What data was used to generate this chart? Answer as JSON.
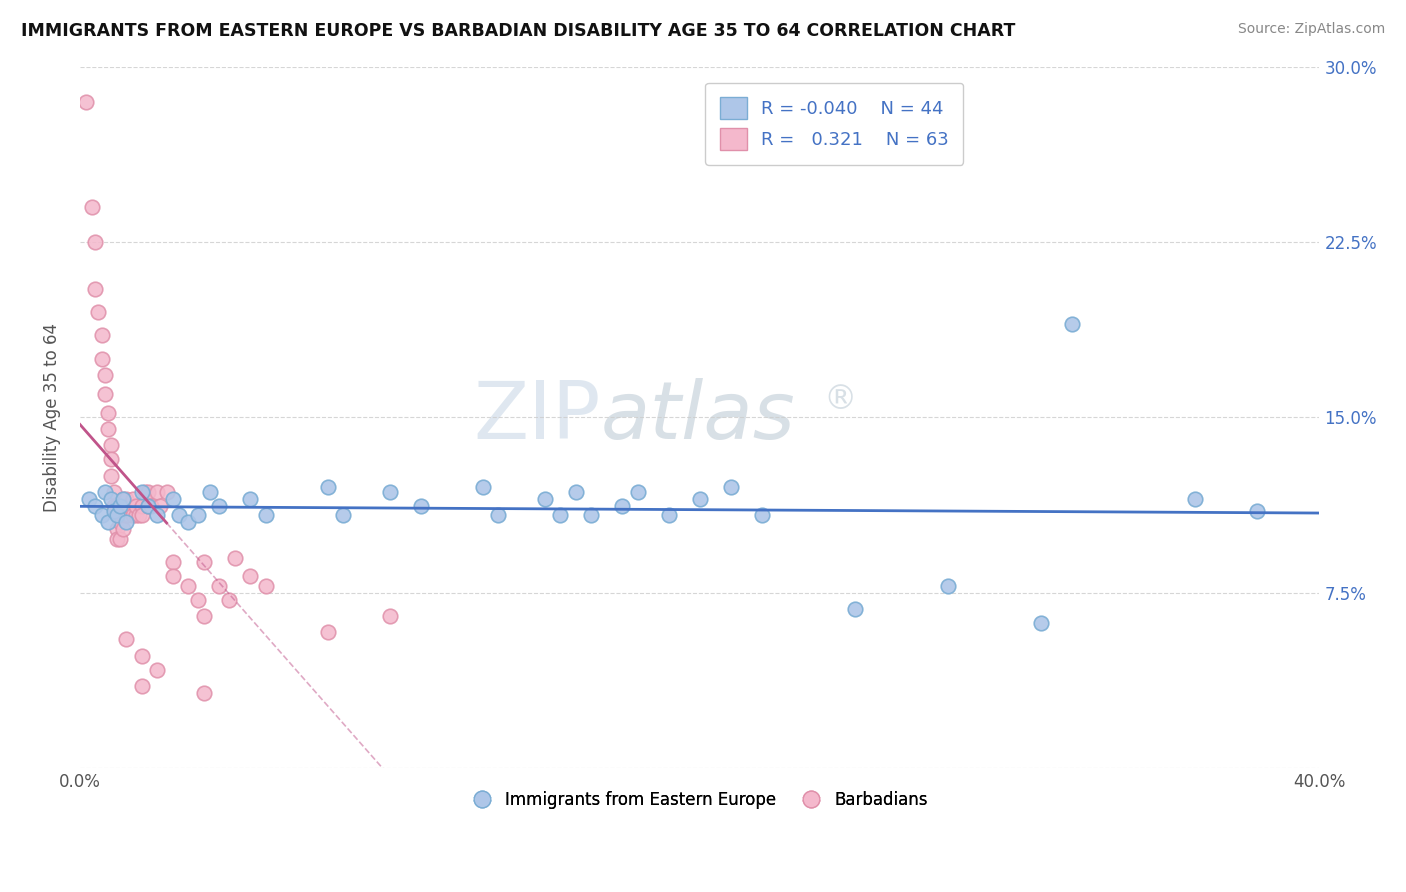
{
  "title": "IMMIGRANTS FROM EASTERN EUROPE VS BARBADIAN DISABILITY AGE 35 TO 64 CORRELATION CHART",
  "source": "Source: ZipAtlas.com",
  "ylabel": "Disability Age 35 to 64",
  "xlim": [
    0.0,
    0.4
  ],
  "ylim": [
    0.0,
    0.3
  ],
  "xtick_vals": [
    0.0,
    0.1,
    0.2,
    0.3,
    0.4
  ],
  "xtick_labels": [
    "0.0%",
    "",
    "",
    "",
    "40.0%"
  ],
  "ytick_vals": [
    0.0,
    0.075,
    0.15,
    0.225,
    0.3
  ],
  "ytick_labels": [
    "",
    "7.5%",
    "15.0%",
    "22.5%",
    "30.0%"
  ],
  "legend_r_blue": "-0.040",
  "legend_n_blue": "44",
  "legend_r_pink": "0.321",
  "legend_n_pink": "63",
  "blue_scatter": [
    [
      0.003,
      0.115
    ],
    [
      0.005,
      0.112
    ],
    [
      0.007,
      0.108
    ],
    [
      0.008,
      0.118
    ],
    [
      0.009,
      0.105
    ],
    [
      0.01,
      0.115
    ],
    [
      0.011,
      0.11
    ],
    [
      0.012,
      0.108
    ],
    [
      0.013,
      0.112
    ],
    [
      0.014,
      0.115
    ],
    [
      0.015,
      0.105
    ],
    [
      0.02,
      0.118
    ],
    [
      0.022,
      0.112
    ],
    [
      0.025,
      0.108
    ],
    [
      0.03,
      0.115
    ],
    [
      0.032,
      0.108
    ],
    [
      0.035,
      0.105
    ],
    [
      0.038,
      0.108
    ],
    [
      0.042,
      0.118
    ],
    [
      0.045,
      0.112
    ],
    [
      0.055,
      0.115
    ],
    [
      0.06,
      0.108
    ],
    [
      0.08,
      0.12
    ],
    [
      0.085,
      0.108
    ],
    [
      0.1,
      0.118
    ],
    [
      0.11,
      0.112
    ],
    [
      0.13,
      0.12
    ],
    [
      0.135,
      0.108
    ],
    [
      0.15,
      0.115
    ],
    [
      0.155,
      0.108
    ],
    [
      0.16,
      0.118
    ],
    [
      0.165,
      0.108
    ],
    [
      0.175,
      0.112
    ],
    [
      0.18,
      0.118
    ],
    [
      0.19,
      0.108
    ],
    [
      0.2,
      0.115
    ],
    [
      0.21,
      0.12
    ],
    [
      0.22,
      0.108
    ],
    [
      0.25,
      0.068
    ],
    [
      0.28,
      0.078
    ],
    [
      0.31,
      0.062
    ],
    [
      0.32,
      0.19
    ],
    [
      0.36,
      0.115
    ],
    [
      0.38,
      0.11
    ]
  ],
  "pink_scatter": [
    [
      0.002,
      0.285
    ],
    [
      0.004,
      0.24
    ],
    [
      0.005,
      0.225
    ],
    [
      0.005,
      0.205
    ],
    [
      0.006,
      0.195
    ],
    [
      0.007,
      0.185
    ],
    [
      0.007,
      0.175
    ],
    [
      0.008,
      0.168
    ],
    [
      0.008,
      0.16
    ],
    [
      0.009,
      0.152
    ],
    [
      0.009,
      0.145
    ],
    [
      0.01,
      0.138
    ],
    [
      0.01,
      0.132
    ],
    [
      0.01,
      0.125
    ],
    [
      0.011,
      0.118
    ],
    [
      0.011,
      0.112
    ],
    [
      0.012,
      0.108
    ],
    [
      0.012,
      0.102
    ],
    [
      0.012,
      0.098
    ],
    [
      0.012,
      0.112
    ],
    [
      0.013,
      0.108
    ],
    [
      0.013,
      0.105
    ],
    [
      0.013,
      0.098
    ],
    [
      0.014,
      0.115
    ],
    [
      0.014,
      0.108
    ],
    [
      0.014,
      0.102
    ],
    [
      0.015,
      0.112
    ],
    [
      0.015,
      0.108
    ],
    [
      0.015,
      0.115
    ],
    [
      0.016,
      0.108
    ],
    [
      0.016,
      0.112
    ],
    [
      0.017,
      0.108
    ],
    [
      0.017,
      0.115
    ],
    [
      0.018,
      0.108
    ],
    [
      0.018,
      0.112
    ],
    [
      0.019,
      0.108
    ],
    [
      0.02,
      0.112
    ],
    [
      0.02,
      0.108
    ],
    [
      0.021,
      0.118
    ],
    [
      0.022,
      0.112
    ],
    [
      0.022,
      0.118
    ],
    [
      0.023,
      0.112
    ],
    [
      0.025,
      0.118
    ],
    [
      0.026,
      0.112
    ],
    [
      0.028,
      0.118
    ],
    [
      0.03,
      0.088
    ],
    [
      0.03,
      0.082
    ],
    [
      0.035,
      0.078
    ],
    [
      0.038,
      0.072
    ],
    [
      0.04,
      0.065
    ],
    [
      0.04,
      0.088
    ],
    [
      0.045,
      0.078
    ],
    [
      0.048,
      0.072
    ],
    [
      0.05,
      0.09
    ],
    [
      0.055,
      0.082
    ],
    [
      0.06,
      0.078
    ],
    [
      0.015,
      0.055
    ],
    [
      0.02,
      0.048
    ],
    [
      0.025,
      0.042
    ],
    [
      0.04,
      0.032
    ],
    [
      0.08,
      0.058
    ],
    [
      0.1,
      0.065
    ],
    [
      0.02,
      0.035
    ]
  ],
  "blue_line_color": "#4472C4",
  "pink_line_color": "#C0548A",
  "blue_scatter_facecolor": "#AEC6E8",
  "pink_scatter_facecolor": "#F4B8CC",
  "blue_scatter_edgecolor": "#7BADD4",
  "pink_scatter_edgecolor": "#E090AA",
  "background_color": "#ffffff",
  "grid_color": "#CCCCCC",
  "watermark_text": "ZIPatlas",
  "watermark_symbol": "®"
}
